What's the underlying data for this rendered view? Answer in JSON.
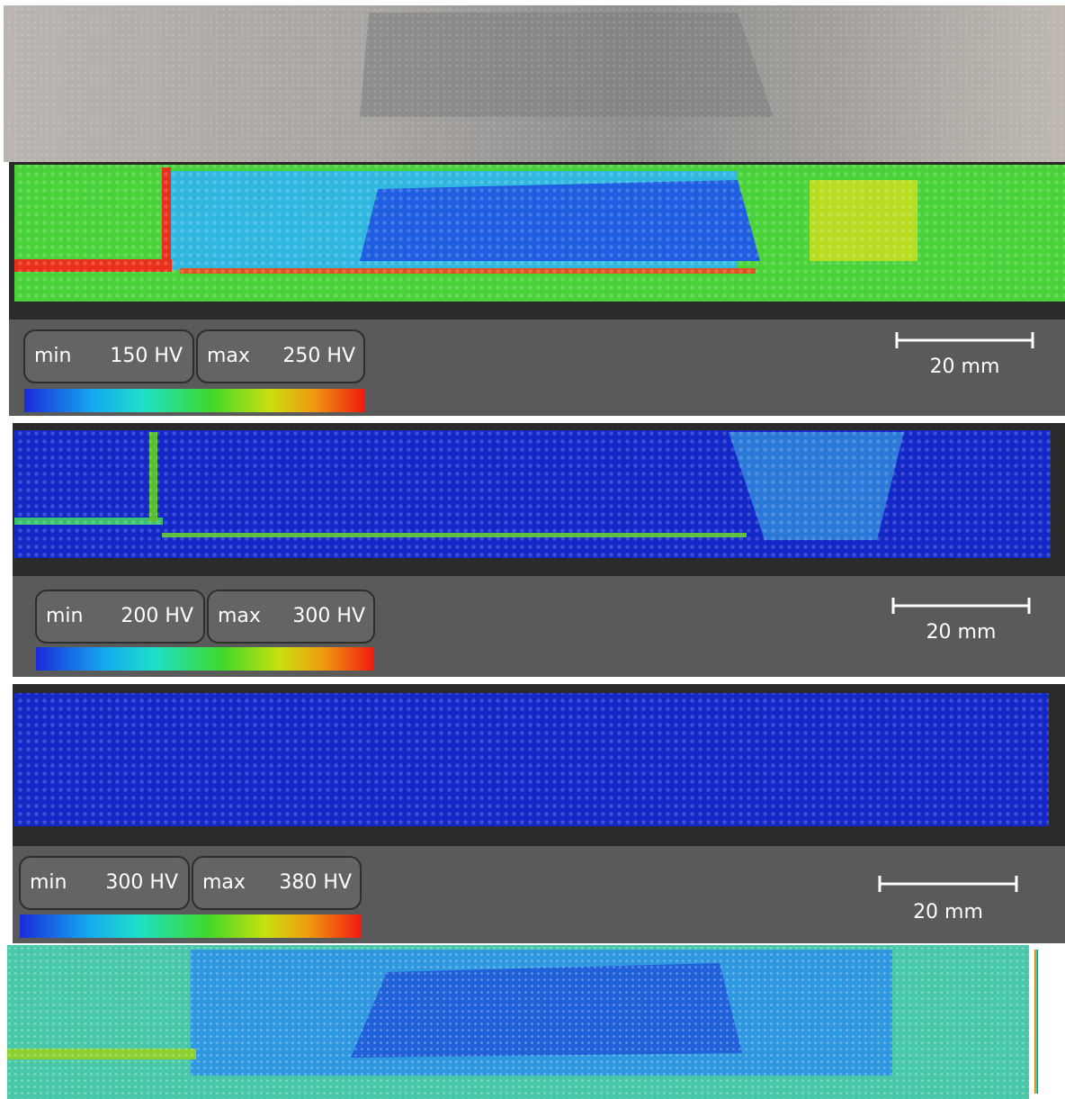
{
  "panels": [
    {
      "min_label": "min",
      "min_value": "150 HV",
      "max_label": "max",
      "max_value": "250 HV",
      "scale_bar": "20 mm"
    },
    {
      "min_label": "min",
      "min_value": "200 HV",
      "max_label": "max",
      "max_value": "300 HV",
      "scale_bar": "20 mm"
    },
    {
      "min_label": "min",
      "min_value": "300 HV",
      "max_label": "max",
      "max_value": "380 HV",
      "scale_bar": "20 mm"
    }
  ]
}
